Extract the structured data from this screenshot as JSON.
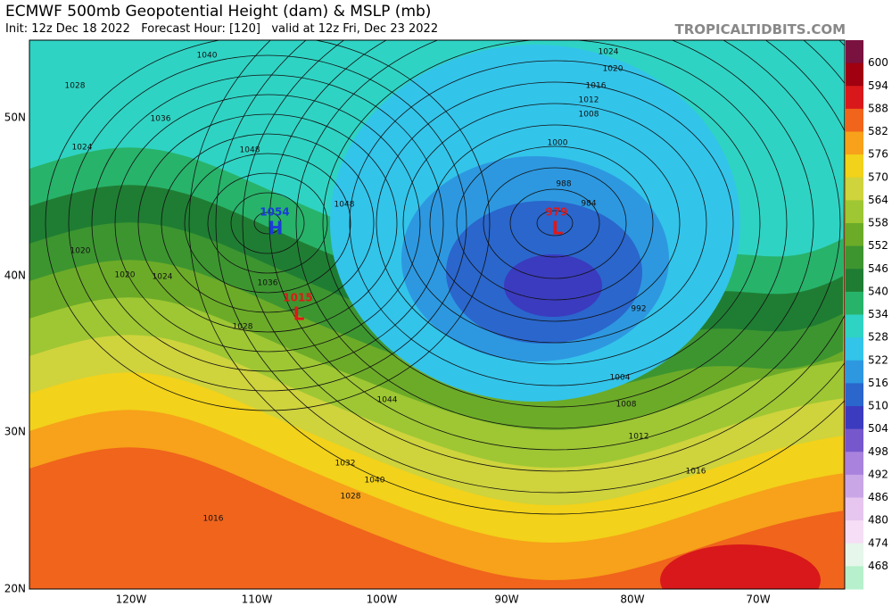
{
  "header": {
    "title": "ECMWF 500mb Geopotential Height (dam) & MSLP (mb)",
    "subtitle": "Init: 12z Dec 18 2022   Forecast Hour: [120]   valid at 12z Fri, Dec 23 2022",
    "site": "TROPICALTIDBITS.COM"
  },
  "colorbar": {
    "labels": [
      "600",
      "594",
      "588",
      "582",
      "576",
      "570",
      "564",
      "558",
      "552",
      "546",
      "540",
      "534",
      "528",
      "522",
      "516",
      "510",
      "504",
      "498",
      "492",
      "486",
      "480",
      "474",
      "468"
    ],
    "colors": [
      "#7a1240",
      "#a00010",
      "#d8181a",
      "#f0641c",
      "#f7a21a",
      "#f2d21a",
      "#cfd33c",
      "#9ec733",
      "#6cab28",
      "#3d9530",
      "#1f7d33",
      "#28b36a",
      "#2fd3c3",
      "#33c4ea",
      "#2d98e0",
      "#2a66cc",
      "#3b3bbf",
      "#7658cc",
      "#a882dc",
      "#c9a6e6",
      "#e6c6ee",
      "#f6def6",
      "#e6f6ea",
      "#b6f0cc"
    ]
  },
  "latitudes": [
    "50N",
    "40N",
    "30N",
    "20N"
  ],
  "longitudes": [
    "120W",
    "110W",
    "100W",
    "90W",
    "80W",
    "70W"
  ],
  "isobar_labels": [
    "1040",
    "1028",
    "1036",
    "1024",
    "1048",
    "1020",
    "1020",
    "1024",
    "1048",
    "1036",
    "1028",
    "1044",
    "1032",
    "1040",
    "1028",
    "1016",
    "1024",
    "1020",
    "1016",
    "1012",
    "1008",
    "1000",
    "988",
    "984",
    "992",
    "1004",
    "1008",
    "1012",
    "1016"
  ],
  "centers": [
    {
      "value": "1054",
      "letter": "H",
      "color": "#1a3cd8"
    },
    {
      "value": "979",
      "letter": "L",
      "color": "#e01818"
    },
    {
      "value": "1015",
      "letter": "L",
      "color": "#e01818"
    }
  ]
}
